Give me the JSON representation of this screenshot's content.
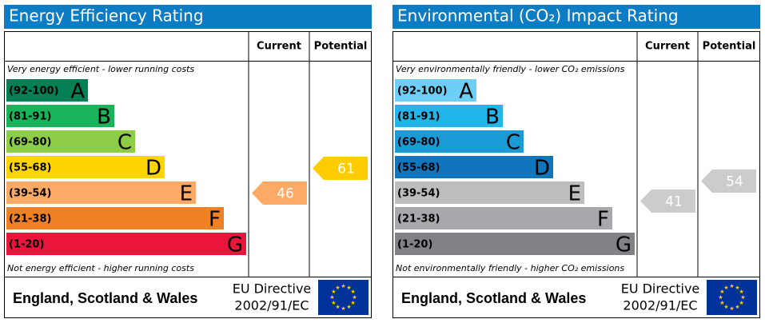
{
  "panels": [
    {
      "title": "Energy Efficiency Rating",
      "columns": [
        "Current",
        "Potential"
      ],
      "top_note": "Very energy efficient - lower running costs",
      "bottom_note": "Not energy efficient - higher running costs",
      "bands": [
        {
          "range": "(92-100)",
          "letter": "A",
          "color": "#008054"
        },
        {
          "range": "(81-91)",
          "letter": "B",
          "color": "#19b459"
        },
        {
          "range": "(69-80)",
          "letter": "C",
          "color": "#8dce46"
        },
        {
          "range": "(55-68)",
          "letter": "D",
          "color": "#ffd500"
        },
        {
          "range": "(39-54)",
          "letter": "E",
          "color": "#fcaa65"
        },
        {
          "range": "(21-38)",
          "letter": "F",
          "color": "#ef8023"
        },
        {
          "range": "(1-20)",
          "letter": "G",
          "color": "#e9153b"
        }
      ],
      "current": {
        "value": "46",
        "color": "#fcaa65"
      },
      "potential": {
        "value": "61",
        "color": "#ffcc00"
      },
      "footer": {
        "region": "England, Scotland & Wales",
        "directive": [
          "EU Directive",
          "2002/91/EC"
        ]
      }
    },
    {
      "title": "Environmental (CO₂) Impact Rating",
      "columns": [
        "Current",
        "Potential"
      ],
      "top_note": "Very environmentally friendly - lower CO₂ emissions",
      "bottom_note": "Not environmentally friendly - higher CO₂ emissions",
      "bands": [
        {
          "range": "(92-100)",
          "letter": "A",
          "color": "#6dcff6"
        },
        {
          "range": "(81-91)",
          "letter": "B",
          "color": "#22b5eb"
        },
        {
          "range": "(69-80)",
          "letter": "C",
          "color": "#1a9ad6"
        },
        {
          "range": "(55-68)",
          "letter": "D",
          "color": "#0f75bc"
        },
        {
          "range": "(39-54)",
          "letter": "E",
          "color": "#bbbdbf"
        },
        {
          "range": "(21-38)",
          "letter": "F",
          "color": "#a6a8ab"
        },
        {
          "range": "(1-20)",
          "letter": "G",
          "color": "#808285"
        }
      ],
      "current": {
        "value": "41",
        "color": "#cccccc"
      },
      "potential": {
        "value": "54",
        "color": "#cccccc"
      },
      "footer": {
        "region": "England, Scotland & Wales",
        "directive": [
          "EU Directive",
          "2002/91/EC"
        ]
      }
    }
  ]
}
